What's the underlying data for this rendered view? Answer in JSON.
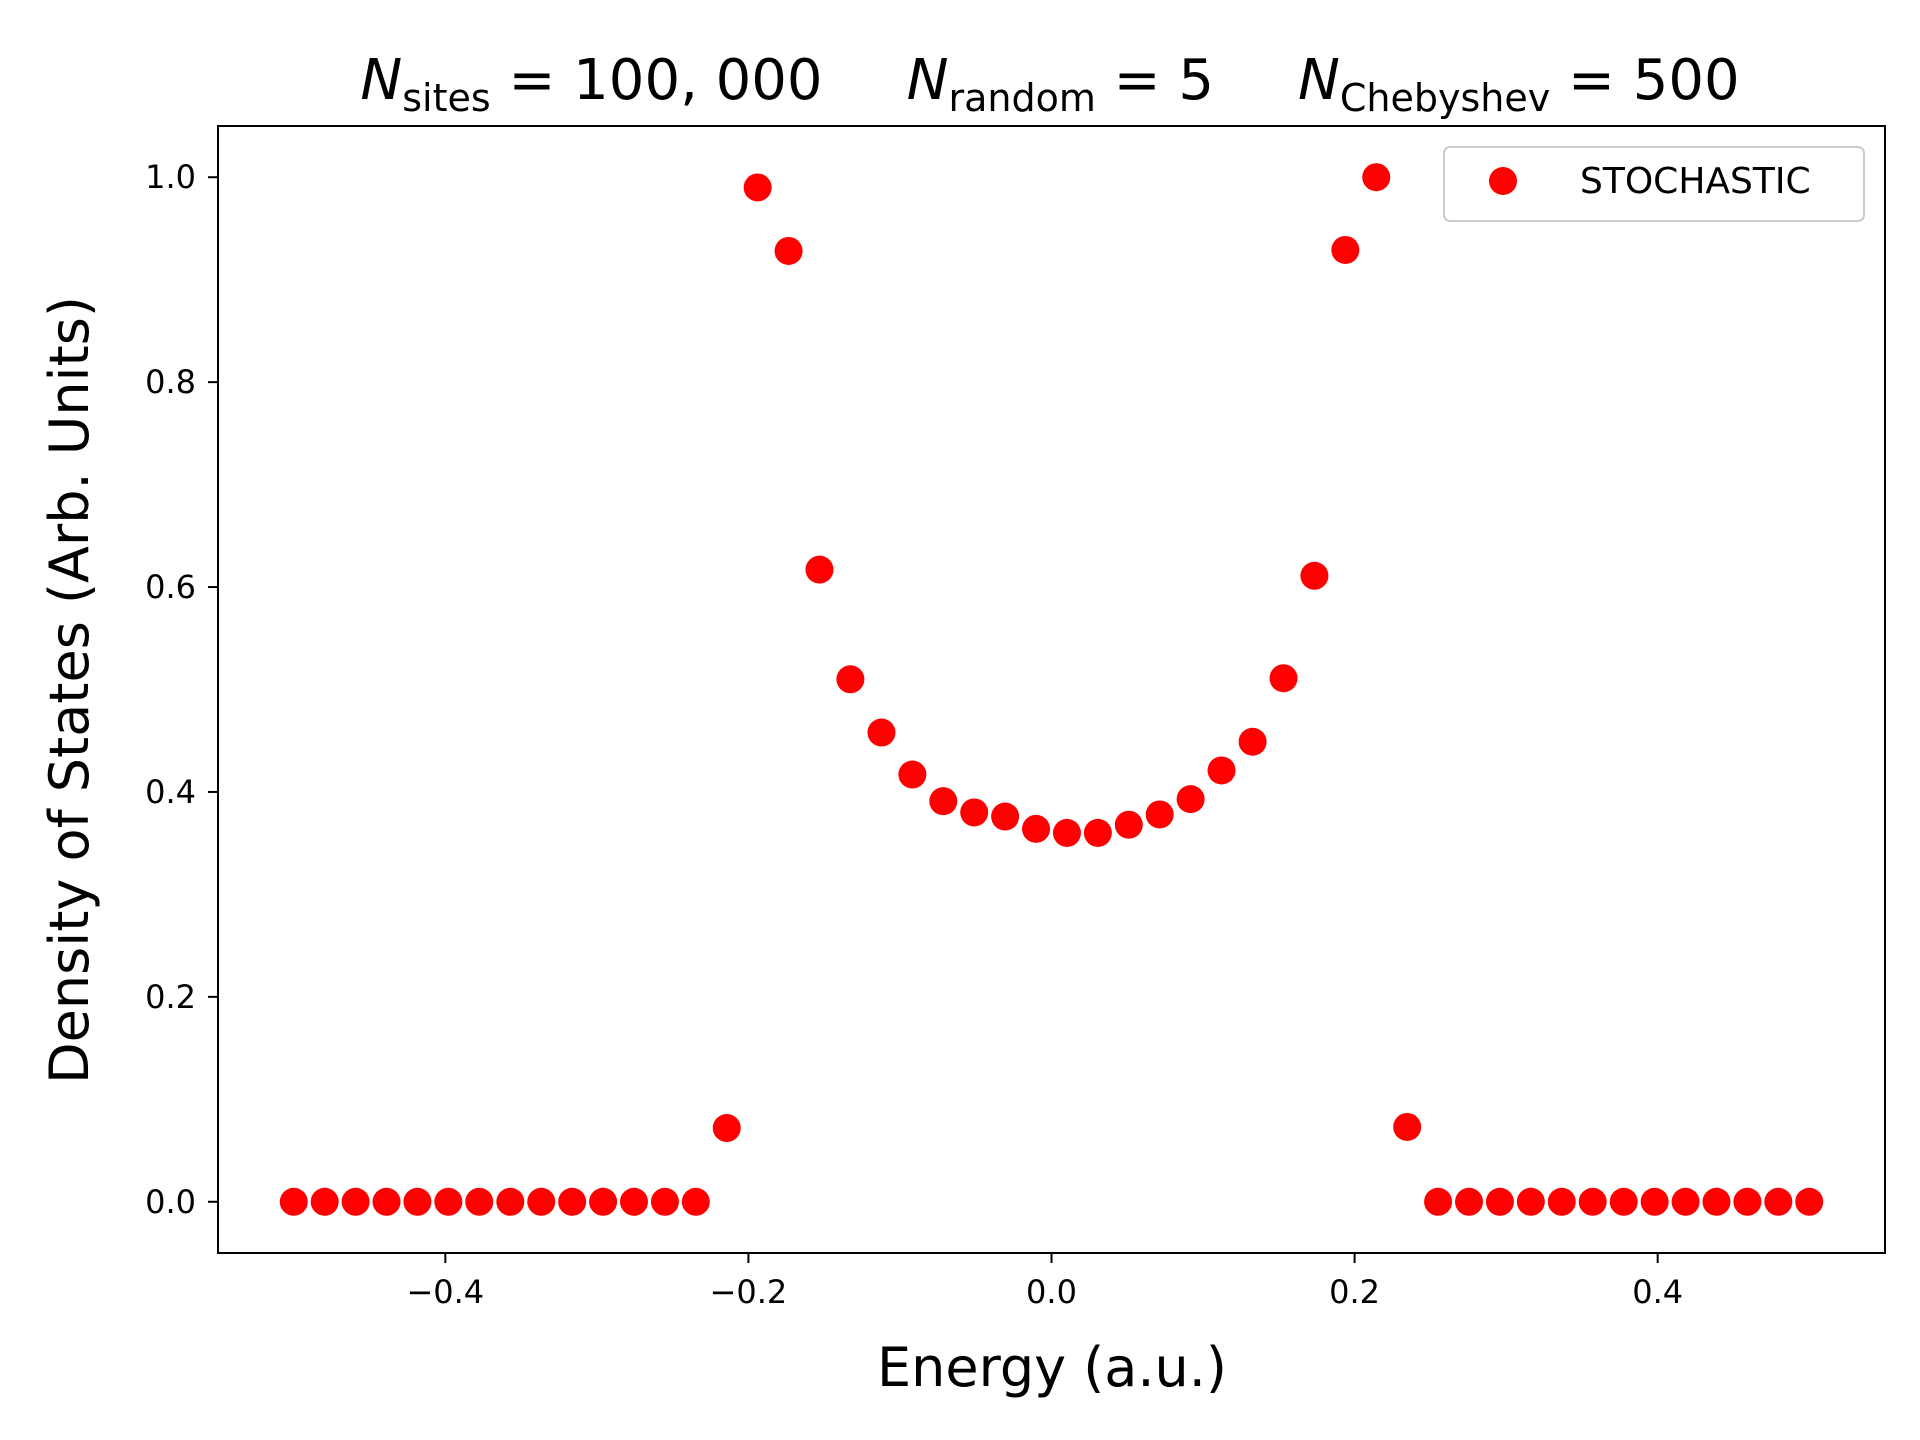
{
  "title": {
    "parts": [
      {
        "sym": "N",
        "sub": "sites",
        "val": "= 100, 000"
      },
      {
        "sym": "N",
        "sub": "random",
        "val": "= 5"
      },
      {
        "sym": "N",
        "sub": "Chebyshev",
        "val": "= 500"
      }
    ]
  },
  "chart_data": {
    "type": "scatter",
    "xlabel": "Energy (a.u.)",
    "ylabel": "Density of States (Arb. Units)",
    "xlim": [
      -0.55,
      0.55
    ],
    "ylim": [
      -0.05,
      1.05
    ],
    "xticks": [
      -0.4,
      -0.2,
      0.0,
      0.2,
      0.4
    ],
    "xtick_labels": [
      "−0.4",
      "−0.2",
      "0.0",
      "0.2",
      "0.4"
    ],
    "yticks": [
      0.0,
      0.2,
      0.4,
      0.6,
      0.8,
      1.0
    ],
    "ytick_labels": [
      "0.0",
      "0.2",
      "0.4",
      "0.6",
      "0.8",
      "1.0"
    ],
    "grid": false,
    "legend_position": "top-right",
    "series": [
      {
        "name": "STOCHASTIC",
        "color": "#ff0000",
        "marker": "circle",
        "x": [
          -0.5,
          -0.4796,
          -0.4592,
          -0.4388,
          -0.4184,
          -0.398,
          -0.3776,
          -0.3571,
          -0.3367,
          -0.3163,
          -0.2959,
          -0.2755,
          -0.2551,
          -0.2347,
          -0.2143,
          -0.1939,
          -0.1735,
          -0.1531,
          -0.1327,
          -0.1122,
          -0.0918,
          -0.0714,
          -0.051,
          -0.0306,
          -0.0102,
          0.0102,
          0.0306,
          0.051,
          0.0714,
          0.0918,
          0.1122,
          0.1327,
          0.1531,
          0.1735,
          0.1939,
          0.2143,
          0.2347,
          0.2551,
          0.2755,
          0.2959,
          0.3163,
          0.3367,
          0.3571,
          0.3776,
          0.398,
          0.4184,
          0.4388,
          0.4592,
          0.4796,
          0.5
        ],
        "y": [
          0.0,
          0.0,
          0.0,
          0.0,
          0.0,
          0.0,
          0.0,
          0.0,
          0.0,
          0.0,
          0.0,
          0.0,
          0.0,
          0.0,
          0.072,
          0.99,
          0.928,
          0.617,
          0.51,
          0.458,
          0.417,
          0.391,
          0.38,
          0.376,
          0.364,
          0.36,
          0.36,
          0.368,
          0.378,
          0.393,
          0.421,
          0.449,
          0.511,
          0.611,
          0.929,
          1.0,
          0.073,
          0.0,
          0.0,
          0.0,
          0.0,
          0.0,
          0.0,
          0.0,
          0.0,
          0.0,
          0.0,
          0.0,
          0.0,
          0.0
        ]
      }
    ]
  }
}
